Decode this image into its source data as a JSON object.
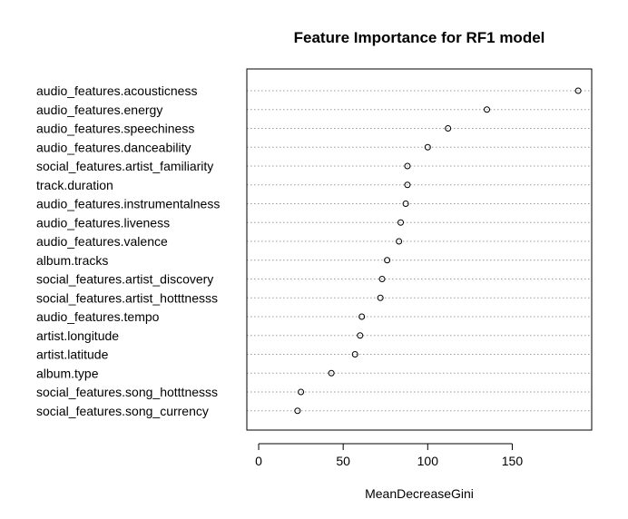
{
  "chart_data": {
    "type": "scatter",
    "title": "Feature Importance for RF1 model",
    "xlabel": "MeanDecreaseGini",
    "ylabel": "",
    "xlim": [
      -7,
      197
    ],
    "xticks": [
      0,
      50,
      100,
      150
    ],
    "grid": "horizontal-dotted",
    "categories": [
      "audio_features.acousticness",
      "audio_features.energy",
      "audio_features.speechiness",
      "audio_features.danceability",
      "social_features.artist_familiarity",
      "track.duration",
      "audio_features.instrumentalness",
      "audio_features.liveness",
      "audio_features.valence",
      "album.tracks",
      "social_features.artist_discovery",
      "social_features.artist_hotttnesss",
      "audio_features.tempo",
      "artist.longitude",
      "artist.latitude",
      "album.type",
      "social_features.song_hotttnesss",
      "social_features.song_currency"
    ],
    "values": [
      189,
      135,
      112,
      100,
      88,
      88,
      87,
      84,
      83,
      76,
      73,
      72,
      61,
      60,
      57,
      43,
      25,
      23
    ]
  }
}
